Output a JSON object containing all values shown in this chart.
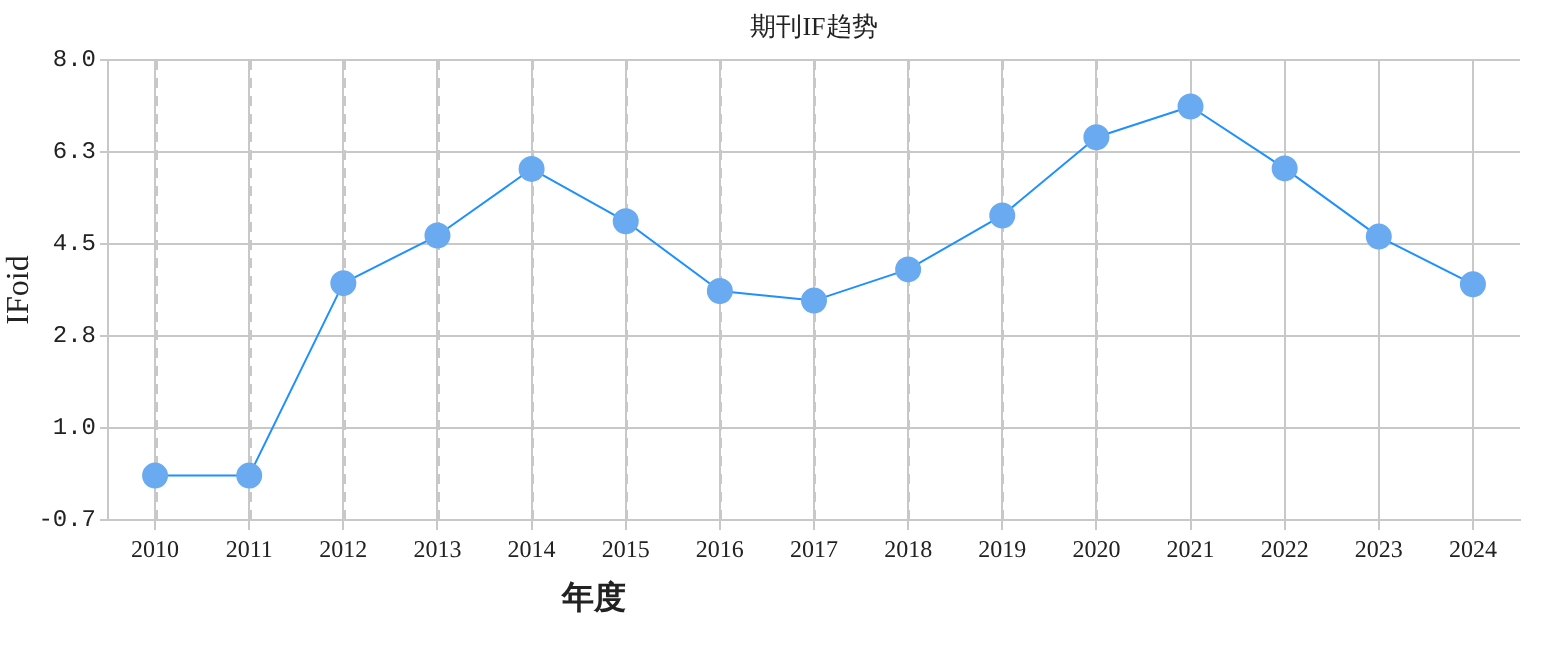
{
  "chart_data": {
    "type": "line",
    "title": "期刊IF趋势",
    "xlabel": "年度",
    "ylabel": "IFoid",
    "categories": [
      "2010",
      "2011",
      "2012",
      "2013",
      "2014",
      "2015",
      "2016",
      "2017",
      "2018",
      "2019",
      "2020",
      "2021",
      "2022",
      "2023",
      "2024"
    ],
    "series": [
      {
        "color": "#1e90ff",
        "values": [
          0.14,
          0.14,
          3.78,
          4.68,
          5.94,
          4.95,
          3.63,
          3.45,
          4.04,
          5.06,
          6.54,
          7.12,
          5.95,
          4.66,
          3.76
        ]
      }
    ],
    "ylim": [
      -0.7,
      8
    ],
    "yticks": [
      -0.7,
      {
        "value": 1.04,
        "label": "1.0"
      },
      {
        "value": 2.78,
        "label": "2.8"
      },
      {
        "value": 4.52,
        "label": "4.5"
      },
      {
        "value": 6.26,
        "label": "6.3"
      },
      {
        "value": 8,
        "label": "8.0"
      }
    ],
    "grid": true,
    "legend": false,
    "marker": "circle",
    "line_style": "solid"
  }
}
